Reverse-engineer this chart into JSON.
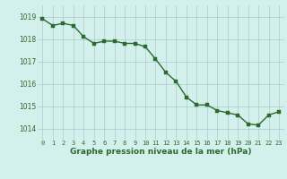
{
  "x": [
    0,
    1,
    2,
    3,
    4,
    5,
    6,
    7,
    8,
    9,
    10,
    11,
    12,
    13,
    14,
    15,
    16,
    17,
    18,
    19,
    20,
    21,
    22,
    23
  ],
  "y": [
    1018.9,
    1018.6,
    1018.7,
    1018.6,
    1018.1,
    1017.8,
    1017.9,
    1017.9,
    1017.8,
    1017.8,
    1017.65,
    1017.1,
    1016.5,
    1016.1,
    1015.4,
    1015.05,
    1015.05,
    1014.8,
    1014.7,
    1014.6,
    1014.2,
    1014.15,
    1014.6,
    1014.75
  ],
  "line_color": "#2d6a2d",
  "marker_color": "#2d6a2d",
  "bg_color": "#d4f0ec",
  "grid_color": "#a8ccc8",
  "xlabel": "Graphe pression niveau de la mer (hPa)",
  "xlabel_color": "#2d6a2d",
  "tick_color": "#2d6a2d",
  "ylim": [
    1013.5,
    1019.5
  ],
  "yticks": [
    1014,
    1015,
    1016,
    1017,
    1018,
    1019
  ],
  "marker_size": 2.5,
  "line_width": 1.0
}
